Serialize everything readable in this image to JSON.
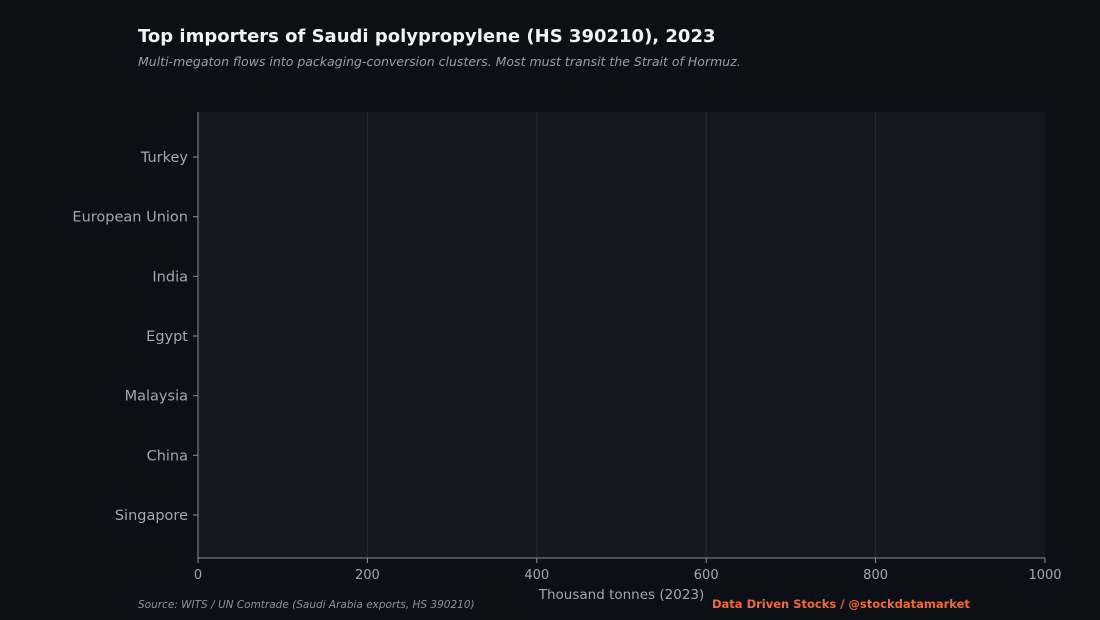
{
  "chart_data": {
    "type": "bar",
    "orientation": "horizontal",
    "title": "Top importers of Saudi polypropylene (HS 390210), 2023",
    "subtitle": "Multi-megaton flows into packaging-conversion clusters. Most must transit the Strait of Hormuz.",
    "categories": [
      "Turkey",
      "European Union",
      "India",
      "Egypt",
      "Malaysia",
      "China",
      "Singapore"
    ],
    "values": [
      null,
      null,
      null,
      null,
      null,
      null,
      null
    ],
    "xlabel": "Thousand tonnes (2023)",
    "ylabel": "",
    "xlim": [
      0,
      1000
    ],
    "xticks": [
      0,
      200,
      400,
      600,
      800,
      1000
    ],
    "grid": "vertical",
    "source": "Source: WITS / UN Comtrade (Saudi Arabia exports, HS 390210)",
    "credit": "Data Driven Stocks  /  @stockdatamarket"
  },
  "colors": {
    "background": "#0d0f17",
    "plot_background": "#151821",
    "grid": "#262a35",
    "axis": "#8a8e98",
    "text": "#a3a7b0",
    "title": "#f2f3f5",
    "brand": "#f06a3c"
  }
}
